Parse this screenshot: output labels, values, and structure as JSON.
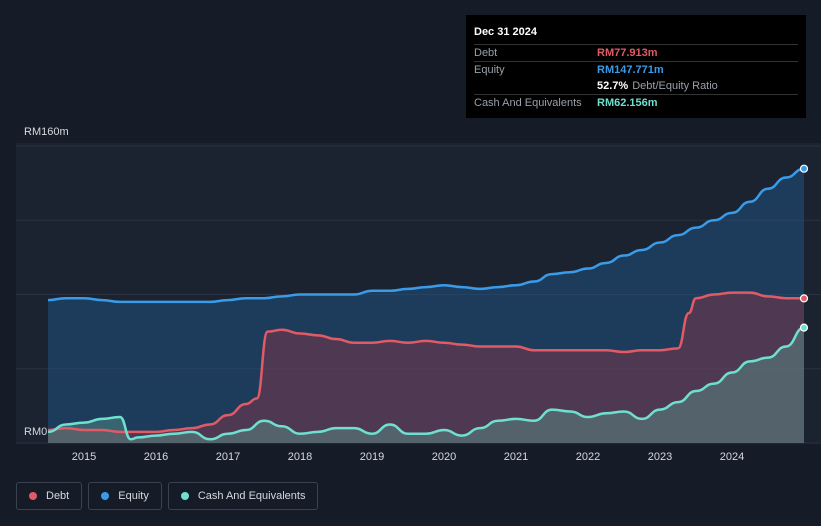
{
  "tooltip": {
    "date": "Dec 31 2024",
    "rows": [
      {
        "label": "Debt",
        "value": "RM77.913m",
        "color": "#e05b66"
      },
      {
        "label": "Equity",
        "value": "RM147.771m",
        "color": "#3a9be8"
      },
      {
        "ratio_value": "52.7%",
        "ratio_label": "Debt/Equity Ratio"
      },
      {
        "label": "Cash And Equivalents",
        "value": "RM62.156m",
        "color": "#6fe0cf"
      }
    ]
  },
  "legend": [
    {
      "label": "Debt",
      "color": "#e05b66"
    },
    {
      "label": "Equity",
      "color": "#3a9be8"
    },
    {
      "label": "Cash And Equivalents",
      "color": "#6fe0cf"
    }
  ],
  "chart_data": {
    "type": "area",
    "ylim": [
      0,
      160
    ],
    "y_tick_labels": [
      {
        "value": 160,
        "label": "RM160m"
      },
      {
        "value": 0,
        "label": "RM0"
      }
    ],
    "xlim": [
      2014.5,
      2025.0
    ],
    "x_ticks": [
      2015,
      2016,
      2017,
      2018,
      2019,
      2020,
      2021,
      2022,
      2023,
      2024
    ],
    "x_tick_labels": [
      "2015",
      "2016",
      "2017",
      "2018",
      "2019",
      "2020",
      "2021",
      "2022",
      "2023",
      "2024"
    ],
    "series": [
      {
        "name": "Equity",
        "color": "#3a9be8",
        "points": [
          [
            2014.5,
            77
          ],
          [
            2014.75,
            78
          ],
          [
            2015,
            78
          ],
          [
            2015.25,
            77
          ],
          [
            2015.5,
            76
          ],
          [
            2015.75,
            76
          ],
          [
            2016,
            76
          ],
          [
            2016.25,
            76
          ],
          [
            2016.5,
            76
          ],
          [
            2016.75,
            76
          ],
          [
            2017,
            77
          ],
          [
            2017.25,
            78
          ],
          [
            2017.5,
            78
          ],
          [
            2017.75,
            79
          ],
          [
            2018,
            80
          ],
          [
            2018.25,
            80
          ],
          [
            2018.5,
            80
          ],
          [
            2018.75,
            80
          ],
          [
            2019,
            82
          ],
          [
            2019.25,
            82
          ],
          [
            2019.5,
            83
          ],
          [
            2019.75,
            84
          ],
          [
            2020,
            85
          ],
          [
            2020.25,
            84
          ],
          [
            2020.5,
            83
          ],
          [
            2020.75,
            84
          ],
          [
            2021,
            85
          ],
          [
            2021.25,
            87
          ],
          [
            2021.5,
            91
          ],
          [
            2021.75,
            92
          ],
          [
            2022,
            94
          ],
          [
            2022.25,
            97
          ],
          [
            2022.5,
            101
          ],
          [
            2022.75,
            104
          ],
          [
            2023,
            108
          ],
          [
            2023.25,
            112
          ],
          [
            2023.5,
            116
          ],
          [
            2023.75,
            120
          ],
          [
            2024,
            124
          ],
          [
            2024.25,
            130
          ],
          [
            2024.5,
            137
          ],
          [
            2024.75,
            143
          ],
          [
            2025,
            147.771
          ]
        ]
      },
      {
        "name": "Debt",
        "color": "#e05b66",
        "points": [
          [
            2014.5,
            7
          ],
          [
            2014.75,
            8
          ],
          [
            2015,
            7
          ],
          [
            2015.25,
            7
          ],
          [
            2015.5,
            6
          ],
          [
            2015.75,
            6
          ],
          [
            2016,
            6
          ],
          [
            2016.25,
            7
          ],
          [
            2016.5,
            8
          ],
          [
            2016.75,
            10
          ],
          [
            2017,
            15
          ],
          [
            2017.25,
            21
          ],
          [
            2017.4,
            24
          ],
          [
            2017.55,
            60
          ],
          [
            2017.75,
            61
          ],
          [
            2018,
            59
          ],
          [
            2018.25,
            58
          ],
          [
            2018.5,
            56
          ],
          [
            2018.75,
            54
          ],
          [
            2019,
            54
          ],
          [
            2019.25,
            55
          ],
          [
            2019.5,
            54
          ],
          [
            2019.75,
            55
          ],
          [
            2020,
            54
          ],
          [
            2020.25,
            53
          ],
          [
            2020.5,
            52
          ],
          [
            2020.75,
            52
          ],
          [
            2021,
            52
          ],
          [
            2021.25,
            50
          ],
          [
            2021.5,
            50
          ],
          [
            2021.75,
            50
          ],
          [
            2022,
            50
          ],
          [
            2022.25,
            50
          ],
          [
            2022.5,
            49
          ],
          [
            2022.75,
            50
          ],
          [
            2023,
            50
          ],
          [
            2023.25,
            51
          ],
          [
            2023.4,
            70
          ],
          [
            2023.5,
            78
          ],
          [
            2023.75,
            80
          ],
          [
            2024,
            81
          ],
          [
            2024.25,
            81
          ],
          [
            2024.5,
            79
          ],
          [
            2024.75,
            78
          ],
          [
            2025,
            77.913
          ]
        ]
      },
      {
        "name": "Cash And Equivalents",
        "color": "#6fe0cf",
        "points": [
          [
            2014.5,
            6
          ],
          [
            2014.75,
            10
          ],
          [
            2015,
            11
          ],
          [
            2015.25,
            13
          ],
          [
            2015.5,
            14
          ],
          [
            2015.65,
            2
          ],
          [
            2015.75,
            3
          ],
          [
            2016,
            4
          ],
          [
            2016.25,
            5
          ],
          [
            2016.5,
            6
          ],
          [
            2016.75,
            2
          ],
          [
            2017,
            5
          ],
          [
            2017.25,
            7
          ],
          [
            2017.5,
            12
          ],
          [
            2017.75,
            9
          ],
          [
            2018,
            5
          ],
          [
            2018.25,
            6
          ],
          [
            2018.5,
            8
          ],
          [
            2018.75,
            8
          ],
          [
            2019,
            5
          ],
          [
            2019.25,
            10
          ],
          [
            2019.5,
            5
          ],
          [
            2019.75,
            5
          ],
          [
            2020,
            7
          ],
          [
            2020.25,
            4
          ],
          [
            2020.5,
            8
          ],
          [
            2020.75,
            12
          ],
          [
            2021,
            13
          ],
          [
            2021.25,
            12
          ],
          [
            2021.5,
            18
          ],
          [
            2021.75,
            17
          ],
          [
            2022,
            14
          ],
          [
            2022.25,
            16
          ],
          [
            2022.5,
            17
          ],
          [
            2022.75,
            13
          ],
          [
            2023,
            18
          ],
          [
            2023.25,
            22
          ],
          [
            2023.5,
            28
          ],
          [
            2023.75,
            32
          ],
          [
            2024,
            38
          ],
          [
            2024.25,
            44
          ],
          [
            2024.5,
            46
          ],
          [
            2024.75,
            52
          ],
          [
            2025,
            62.156
          ]
        ]
      }
    ],
    "end_markers": true,
    "grid": true,
    "legend_position": "bottom-left"
  }
}
